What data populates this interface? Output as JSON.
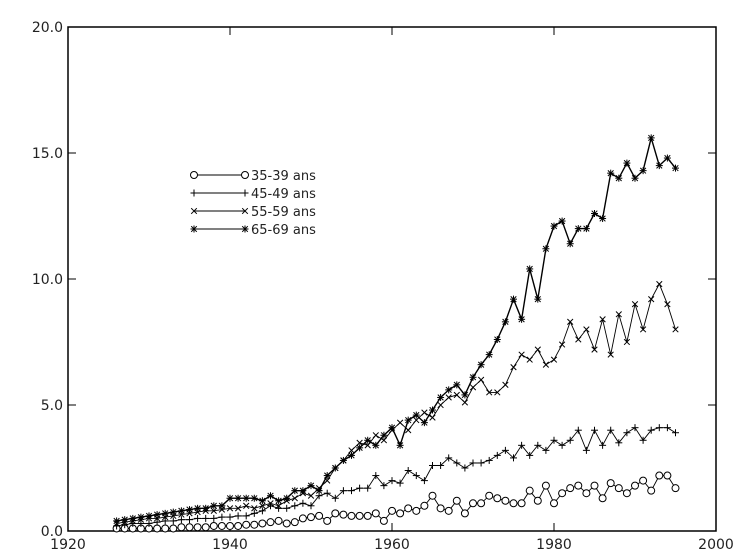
{
  "chart_data": {
    "type": "line",
    "title": "",
    "xlabel": "",
    "ylabel": "",
    "xlim": [
      1920,
      2000
    ],
    "ylim": [
      0,
      20
    ],
    "xticks": [
      "1920",
      "1940",
      "1960",
      "1980",
      "2000"
    ],
    "yticks": [
      "0.0",
      "5.0",
      "10.0",
      "15.0",
      "20.0"
    ],
    "grid": false,
    "legend_position": "upper-left",
    "x": [
      1926,
      1927,
      1928,
      1929,
      1930,
      1931,
      1932,
      1933,
      1934,
      1935,
      1936,
      1937,
      1938,
      1939,
      1940,
      1941,
      1942,
      1943,
      1944,
      1945,
      1946,
      1947,
      1948,
      1949,
      1950,
      1951,
      1952,
      1953,
      1954,
      1955,
      1956,
      1957,
      1958,
      1959,
      1960,
      1961,
      1962,
      1963,
      1964,
      1965,
      1966,
      1967,
      1968,
      1969,
      1970,
      1971,
      1972,
      1973,
      1974,
      1975,
      1976,
      1977,
      1978,
      1979,
      1980,
      1981,
      1982,
      1983,
      1984,
      1985,
      1986,
      1987,
      1988,
      1989,
      1990,
      1991,
      1992,
      1993,
      1994,
      1995
    ],
    "series": [
      {
        "name": "35-39 ans",
        "marker": "circle",
        "values": [
          0.1,
          0.1,
          0.1,
          0.1,
          0.1,
          0.1,
          0.1,
          0.1,
          0.15,
          0.15,
          0.15,
          0.15,
          0.2,
          0.2,
          0.2,
          0.2,
          0.25,
          0.25,
          0.3,
          0.35,
          0.4,
          0.3,
          0.35,
          0.5,
          0.55,
          0.6,
          0.4,
          0.7,
          0.65,
          0.6,
          0.6,
          0.6,
          0.7,
          0.4,
          0.8,
          0.7,
          0.9,
          0.8,
          1.0,
          1.4,
          0.9,
          0.8,
          1.2,
          0.7,
          1.1,
          1.1,
          1.4,
          1.3,
          1.2,
          1.1,
          1.1,
          1.6,
          1.2,
          1.8,
          1.1,
          1.5,
          1.7,
          1.8,
          1.5,
          1.8,
          1.3,
          1.9,
          1.7,
          1.5,
          1.8,
          2.0,
          1.6,
          2.2,
          2.2,
          1.7
        ]
      },
      {
        "name": "45-49 ans",
        "marker": "plus",
        "values": [
          0.2,
          0.25,
          0.3,
          0.3,
          0.3,
          0.35,
          0.4,
          0.4,
          0.45,
          0.45,
          0.5,
          0.5,
          0.5,
          0.55,
          0.55,
          0.6,
          0.6,
          0.7,
          0.8,
          1.0,
          0.9,
          0.9,
          1.0,
          1.1,
          1.0,
          1.4,
          1.5,
          1.3,
          1.6,
          1.6,
          1.7,
          1.7,
          2.2,
          1.8,
          2.0,
          1.9,
          2.4,
          2.2,
          2.0,
          2.6,
          2.6,
          2.9,
          2.7,
          2.5,
          2.7,
          2.7,
          2.8,
          3.0,
          3.2,
          2.9,
          3.4,
          3.0,
          3.4,
          3.2,
          3.6,
          3.4,
          3.6,
          4.0,
          3.2,
          4.0,
          3.4,
          4.0,
          3.5,
          3.9,
          4.1,
          3.6,
          4.0,
          4.1,
          4.1,
          3.9
        ]
      },
      {
        "name": "55-59 ans",
        "marker": "cross",
        "values": [
          0.3,
          0.35,
          0.4,
          0.45,
          0.5,
          0.5,
          0.55,
          0.6,
          0.65,
          0.7,
          0.75,
          0.8,
          0.8,
          0.85,
          0.9,
          0.9,
          1.0,
          0.9,
          1.0,
          1.1,
          1.0,
          1.2,
          1.3,
          1.5,
          1.4,
          1.7,
          2.0,
          2.5,
          2.8,
          3.2,
          3.5,
          3.4,
          3.8,
          3.6,
          4.0,
          4.3,
          4.0,
          4.4,
          4.7,
          4.5,
          5.0,
          5.3,
          5.4,
          5.1,
          5.7,
          6.0,
          5.5,
          5.5,
          5.8,
          6.5,
          7.0,
          6.8,
          7.2,
          6.6,
          6.8,
          7.4,
          8.3,
          7.6,
          8.0,
          7.2,
          8.4,
          7.0,
          8.6,
          7.5,
          9.0,
          8.0,
          9.2,
          9.8,
          9.0,
          8.0
        ]
      },
      {
        "name": "65-69 ans",
        "marker": "star",
        "values": [
          0.4,
          0.45,
          0.5,
          0.55,
          0.6,
          0.65,
          0.7,
          0.75,
          0.8,
          0.85,
          0.9,
          0.9,
          1.0,
          1.0,
          1.3,
          1.3,
          1.3,
          1.3,
          1.2,
          1.4,
          1.2,
          1.3,
          1.6,
          1.6,
          1.8,
          1.6,
          2.2,
          2.5,
          2.8,
          3.0,
          3.3,
          3.6,
          3.4,
          3.8,
          4.1,
          3.4,
          4.4,
          4.6,
          4.3,
          4.8,
          5.3,
          5.6,
          5.8,
          5.4,
          6.1,
          6.6,
          7.0,
          7.6,
          8.3,
          9.2,
          8.4,
          10.4,
          9.2,
          11.2,
          12.1,
          12.3,
          11.4,
          12.0,
          12.0,
          12.6,
          12.4,
          14.2,
          14.0,
          14.6,
          14.0,
          14.3,
          15.6,
          14.5,
          14.8,
          14.4
        ]
      }
    ]
  }
}
